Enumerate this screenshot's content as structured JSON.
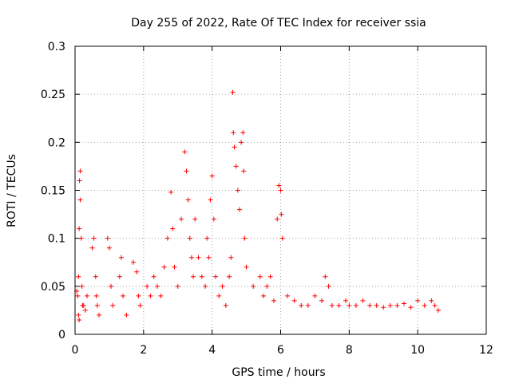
{
  "chart_data": {
    "type": "scatter",
    "title": "Day 255 of 2022, Rate Of TEC Index for receiver ssia",
    "xlabel": "GPS time / hours",
    "ylabel": "ROTI / TECUs",
    "xlim": [
      0,
      12
    ],
    "ylim": [
      0,
      0.3
    ],
    "xticks": [
      0,
      2,
      4,
      6,
      8,
      10,
      12
    ],
    "yticks": [
      0,
      0.05,
      0.1,
      0.15,
      0.2,
      0.25,
      0.3
    ],
    "xtick_labels": [
      "0",
      "2",
      "4",
      "6",
      "8",
      "10",
      "12"
    ],
    "ytick_labels": [
      "0",
      "0.05",
      "0.1",
      "0.15",
      "0.2",
      "0.25",
      "0.3"
    ],
    "grid": true,
    "marker": "+",
    "color": "#ff0000",
    "series": [
      {
        "name": "ROTI",
        "x": [
          0.05,
          0.08,
          0.1,
          0.12,
          0.13,
          0.15,
          0.15,
          0.18,
          0.2,
          0.22,
          0.1,
          0.12,
          0.25,
          0.3,
          0.35,
          0.5,
          0.55,
          0.6,
          0.62,
          0.65,
          0.7,
          0.95,
          1.0,
          1.05,
          1.1,
          1.3,
          1.35,
          1.4,
          1.5,
          1.7,
          1.8,
          1.85,
          1.9,
          2.1,
          2.2,
          2.3,
          2.4,
          2.5,
          2.6,
          2.7,
          2.8,
          2.85,
          2.9,
          3.0,
          3.1,
          3.2,
          3.25,
          3.3,
          3.35,
          3.4,
          3.45,
          3.5,
          3.6,
          3.7,
          3.8,
          3.85,
          3.9,
          3.95,
          4.0,
          4.05,
          4.1,
          4.2,
          4.3,
          4.4,
          4.5,
          4.55,
          4.6,
          4.62,
          4.65,
          4.7,
          4.75,
          4.8,
          4.85,
          4.9,
          4.92,
          4.95,
          5.0,
          5.2,
          5.4,
          5.5,
          5.6,
          5.7,
          5.8,
          5.9,
          5.95,
          6.0,
          6.02,
          6.05,
          6.2,
          6.4,
          6.6,
          6.8,
          7.0,
          7.2,
          7.3,
          7.4,
          7.5,
          7.7,
          7.9,
          8.0,
          8.2,
          8.4,
          8.6,
          8.8,
          9.0,
          9.2,
          9.4,
          9.6,
          9.8,
          10.0,
          10.2,
          10.4,
          10.5,
          10.6
        ],
        "y": [
          0.045,
          0.04,
          0.06,
          0.11,
          0.16,
          0.17,
          0.14,
          0.1,
          0.05,
          0.03,
          0.02,
          0.015,
          0.03,
          0.025,
          0.04,
          0.09,
          0.1,
          0.06,
          0.04,
          0.03,
          0.02,
          0.1,
          0.09,
          0.05,
          0.03,
          0.06,
          0.08,
          0.04,
          0.02,
          0.075,
          0.065,
          0.04,
          0.03,
          0.05,
          0.04,
          0.06,
          0.05,
          0.04,
          0.07,
          0.1,
          0.148,
          0.11,
          0.07,
          0.05,
          0.12,
          0.19,
          0.17,
          0.14,
          0.1,
          0.08,
          0.06,
          0.12,
          0.08,
          0.06,
          0.05,
          0.1,
          0.08,
          0.14,
          0.165,
          0.12,
          0.06,
          0.04,
          0.05,
          0.03,
          0.06,
          0.08,
          0.252,
          0.21,
          0.195,
          0.175,
          0.15,
          0.13,
          0.2,
          0.21,
          0.17,
          0.1,
          0.07,
          0.05,
          0.06,
          0.04,
          0.05,
          0.06,
          0.035,
          0.12,
          0.155,
          0.15,
          0.125,
          0.1,
          0.04,
          0.035,
          0.03,
          0.03,
          0.04,
          0.035,
          0.06,
          0.05,
          0.03,
          0.03,
          0.035,
          0.03,
          0.03,
          0.035,
          0.03,
          0.03,
          0.028,
          0.03,
          0.03,
          0.032,
          0.028,
          0.035,
          0.03,
          0.035,
          0.03,
          0.025
        ]
      }
    ]
  }
}
